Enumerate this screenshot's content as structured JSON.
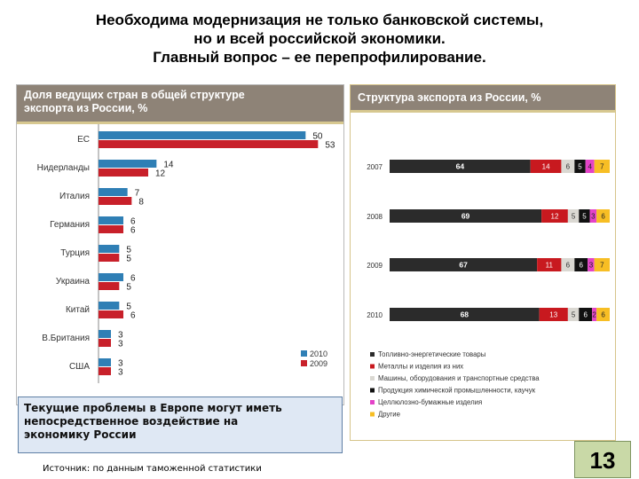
{
  "slide": {
    "title_lines": [
      "Необходима модернизация не только банковской системы,",
      "но и всей российской экономики.",
      "Главный вопрос – ее перепрофилирование."
    ],
    "note_lines": [
      "Текущие проблемы в Европе могут иметь",
      "непосредственное воздействие на",
      "экономику России"
    ],
    "source": "Источник: по данным таможенной статистики",
    "slide_number": "13"
  },
  "colors": {
    "panel_header": "#8e8377",
    "bar_2010": "#2f7fb5",
    "bar_2009": "#c8202a",
    "fuel": "#2b2b2b",
    "metals": "#c8191f",
    "machinery": "#dad8d2",
    "chemicals": "#111111",
    "paper": "#e443c8",
    "other": "#f7be24",
    "note_bg": "#dfe8f4",
    "slide_num_bg": "#c9d9a7"
  },
  "chart_data": [
    {
      "type": "bar",
      "orientation": "horizontal",
      "title_lines": [
        "Доля ведущих стран в общей структуре",
        "экспорта из России, %"
      ],
      "categories": [
        "ЕС",
        "Нидерланды",
        "Италия",
        "Германия",
        "Турция",
        "Украина",
        "Китай",
        "В.Британия",
        "США"
      ],
      "series": [
        {
          "name": "2010",
          "values": [
            50,
            14,
            7,
            6,
            5,
            6,
            5,
            3,
            3
          ]
        },
        {
          "name": "2009",
          "values": [
            53,
            12,
            8,
            6,
            5,
            5,
            6,
            3,
            3
          ]
        }
      ],
      "xlim": [
        0,
        60
      ],
      "legend": "bottom-right"
    },
    {
      "type": "bar",
      "orientation": "horizontal",
      "stacked": true,
      "title": "Структура экспорта из России, %",
      "categories": [
        "2007",
        "2008",
        "2009",
        "2010"
      ],
      "series": [
        {
          "name": "Топливно-энергетические товары",
          "values": [
            64,
            69,
            67,
            68
          ],
          "color": "#2b2b2b"
        },
        {
          "name": "Металлы и изделия из них",
          "values": [
            14,
            12,
            11,
            13
          ],
          "color": "#c8191f"
        },
        {
          "name": "Машины, оборудования и транспортные средства",
          "values": [
            6,
            5,
            6,
            5
          ],
          "color": "#dad8d2"
        },
        {
          "name": "Продукция химической промышленности, каучук",
          "values": [
            5,
            5,
            6,
            6
          ],
          "color": "#111111"
        },
        {
          "name": "Целлюлозно-бумажные изделия",
          "values": [
            4,
            3,
            3,
            2
          ],
          "color": "#e443c8"
        },
        {
          "name": "Другие",
          "values": [
            7,
            6,
            7,
            6
          ],
          "color": "#f7be24"
        }
      ],
      "xlim": [
        0,
        100
      ],
      "legend": "bottom"
    }
  ]
}
